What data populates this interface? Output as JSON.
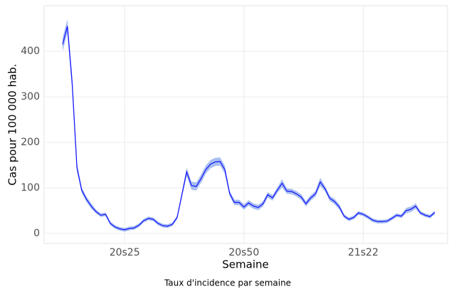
{
  "chart_data": {
    "type": "line",
    "x_label": "Semaine",
    "y_label": "Cas pour 100 000 hab.",
    "caption": "Taux d'incidence par semaine",
    "categories": [
      null,
      null,
      null,
      null,
      null,
      null,
      null,
      null,
      null,
      null,
      null,
      null,
      null,
      "20s25",
      null,
      null,
      null,
      null,
      null,
      null,
      null,
      null,
      null,
      null,
      null,
      null,
      null,
      null,
      null,
      null,
      null,
      null,
      null,
      null,
      null,
      null,
      null,
      null,
      "20s50",
      null,
      null,
      null,
      null,
      null,
      null,
      null,
      null,
      null,
      null,
      null,
      null,
      null,
      null,
      null,
      null,
      null,
      null,
      null,
      null,
      null,
      null,
      null,
      null,
      "21s22",
      null,
      null,
      null,
      null,
      null,
      null,
      null,
      null,
      null,
      null,
      null,
      null,
      null,
      null,
      null
    ],
    "values": [
      415,
      455,
      330,
      145,
      95,
      75,
      60,
      48,
      40,
      42,
      22,
      14,
      10,
      8,
      11,
      12,
      18,
      28,
      33,
      31,
      22,
      17,
      16,
      20,
      35,
      85,
      135,
      105,
      103,
      120,
      140,
      152,
      157,
      158,
      140,
      88,
      68,
      68,
      58,
      67,
      60,
      57,
      65,
      85,
      78,
      95,
      110,
      93,
      92,
      87,
      80,
      65,
      78,
      87,
      113,
      98,
      77,
      70,
      58,
      38,
      31,
      35,
      45,
      42,
      36,
      29,
      26,
      26,
      27,
      33,
      40,
      38,
      50,
      53,
      60,
      45,
      40,
      37,
      46
    ],
    "lower": [
      400,
      440,
      315,
      136,
      89,
      69,
      54,
      44,
      36,
      38,
      18,
      10,
      6,
      4,
      7,
      8,
      14,
      24,
      29,
      27,
      18,
      13,
      12,
      16,
      31,
      79,
      126,
      96,
      94,
      111,
      131,
      143,
      148,
      149,
      131,
      82,
      62,
      62,
      52,
      61,
      54,
      51,
      59,
      79,
      72,
      89,
      101,
      87,
      86,
      81,
      74,
      59,
      72,
      81,
      104,
      92,
      71,
      64,
      52,
      34,
      27,
      31,
      41,
      38,
      32,
      25,
      22,
      22,
      23,
      29,
      36,
      34,
      44,
      47,
      54,
      41,
      36,
      33,
      42
    ],
    "upper": [
      430,
      470,
      345,
      154,
      101,
      81,
      66,
      52,
      44,
      46,
      26,
      18,
      14,
      12,
      15,
      16,
      22,
      32,
      37,
      35,
      26,
      21,
      20,
      24,
      39,
      91,
      144,
      114,
      112,
      129,
      149,
      161,
      166,
      167,
      149,
      94,
      74,
      74,
      64,
      73,
      66,
      63,
      71,
      91,
      84,
      101,
      119,
      99,
      98,
      93,
      86,
      71,
      84,
      93,
      122,
      104,
      83,
      76,
      64,
      42,
      35,
      39,
      49,
      46,
      40,
      33,
      30,
      30,
      31,
      37,
      44,
      42,
      56,
      59,
      66,
      49,
      44,
      41,
      50
    ],
    "color": "#1a1aff",
    "band_color": "#a8bff0",
    "ylim": [
      -22,
      500
    ],
    "yticks": [
      0,
      100,
      200,
      300,
      400
    ],
    "grid": true
  }
}
